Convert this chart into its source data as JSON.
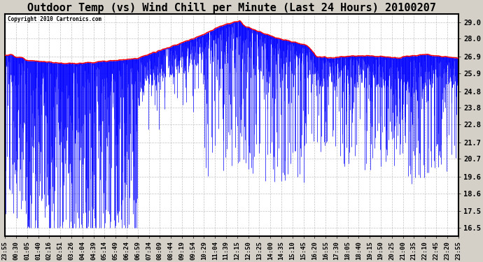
{
  "title": "Outdoor Temp (vs) Wind Chill per Minute (Last 24 Hours) 20100207",
  "copyright": "Copyright 2010 Cartronics.com",
  "yticks": [
    16.5,
    17.5,
    18.6,
    19.6,
    20.7,
    21.7,
    22.8,
    23.8,
    24.8,
    25.9,
    26.9,
    28.0,
    29.0
  ],
  "ymin": 16.0,
  "ymax": 29.5,
  "bg_color": "#d4d0c8",
  "plot_bg_color": "#ffffff",
  "line_color_temp": "#ff0000",
  "fill_color_chill": "#0000ff",
  "title_fontsize": 11,
  "xlabel_fontsize": 6.5,
  "ylabel_fontsize": 7.5,
  "xtick_labels": [
    "23:55",
    "00:30",
    "01:05",
    "01:40",
    "02:16",
    "02:51",
    "03:26",
    "04:04",
    "04:39",
    "05:14",
    "05:49",
    "06:24",
    "06:59",
    "07:34",
    "08:09",
    "08:44",
    "09:19",
    "09:54",
    "10:29",
    "11:04",
    "11:39",
    "12:15",
    "12:50",
    "13:25",
    "14:00",
    "14:35",
    "15:10",
    "15:45",
    "16:20",
    "16:55",
    "17:30",
    "18:05",
    "18:40",
    "19:15",
    "19:50",
    "20:25",
    "21:00",
    "21:35",
    "22:10",
    "22:45",
    "23:20",
    "23:55"
  ],
  "figwidth": 6.9,
  "figheight": 3.75,
  "dpi": 100
}
